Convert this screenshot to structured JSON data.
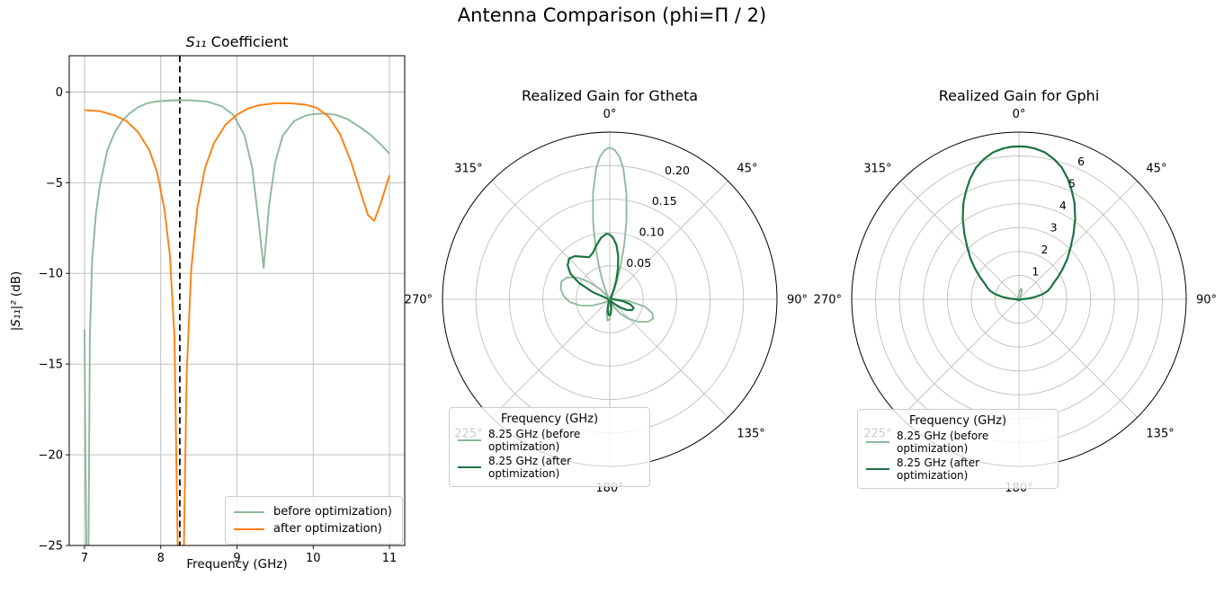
{
  "figure": {
    "suptitle": "Antenna Comparison (phi=Π / 2)",
    "colors": {
      "before": "#8fbc8f",
      "before_line": "#8db79a",
      "after_polar": "#1b7340",
      "after_s11": "#ff7f0e",
      "marker": "#000000",
      "grid": "#b8b8b8",
      "spine": "#000000"
    }
  },
  "chart_data": [
    {
      "id": "s11",
      "type": "line",
      "title_math": "S₁₁",
      "title_rest": " Coefficient",
      "xlabel": "Frequency (GHz)",
      "ylabel_math": "|S₁₁|²",
      "ylabel_rest": " (dB)",
      "xlim": [
        6.8,
        11.2
      ],
      "ylim": [
        -25,
        2.0
      ],
      "xticks": [
        7,
        8,
        9,
        10,
        11
      ],
      "xtick_labels": [
        "7",
        "8",
        "9",
        "10",
        "11"
      ],
      "yticks": [
        0,
        -5,
        -10,
        -15,
        -20,
        -25
      ],
      "ytick_labels": [
        "0",
        "−5",
        "−10",
        "−15",
        "−20",
        "−25"
      ],
      "grid": true,
      "vline": {
        "x": 8.25,
        "color": "#000000",
        "style": "dashed"
      },
      "legend_location": "lower right",
      "series": [
        {
          "name": "before optimization)",
          "color": "#8db79a",
          "x": [
            7.0,
            7.01,
            7.03,
            7.05,
            7.07,
            7.1,
            7.15,
            7.2,
            7.3,
            7.4,
            7.5,
            7.6,
            7.7,
            7.8,
            7.9,
            8.0,
            8.2,
            8.4,
            8.6,
            8.8,
            8.95,
            9.1,
            9.2,
            9.28,
            9.35,
            9.42,
            9.5,
            9.6,
            9.75,
            9.9,
            10.0,
            10.15,
            10.3,
            10.45,
            10.6,
            10.75,
            10.9,
            11.0
          ],
          "y": [
            -13.1,
            -19.0,
            -27.0,
            -27.0,
            -13.5,
            -9.3,
            -6.7,
            -5.2,
            -3.2,
            -2.2,
            -1.55,
            -1.15,
            -0.85,
            -0.65,
            -0.55,
            -0.5,
            -0.45,
            -0.46,
            -0.52,
            -0.78,
            -1.25,
            -2.4,
            -4.2,
            -7.0,
            -9.7,
            -6.3,
            -3.9,
            -2.4,
            -1.6,
            -1.3,
            -1.22,
            -1.18,
            -1.26,
            -1.5,
            -1.9,
            -2.35,
            -2.95,
            -3.4
          ]
        },
        {
          "name": "after optimization)",
          "color": "#ff7f0e",
          "x": [
            7.0,
            7.2,
            7.4,
            7.55,
            7.7,
            7.85,
            7.95,
            8.05,
            8.12,
            8.18,
            8.23,
            8.26,
            8.3,
            8.34,
            8.4,
            8.48,
            8.58,
            8.7,
            8.85,
            9.0,
            9.15,
            9.3,
            9.5,
            9.7,
            9.9,
            10.05,
            10.2,
            10.35,
            10.5,
            10.62,
            10.72,
            10.8,
            10.88,
            11.0
          ],
          "y": [
            -1.0,
            -1.05,
            -1.3,
            -1.6,
            -2.2,
            -3.2,
            -4.4,
            -6.5,
            -9.0,
            -13.5,
            -27.0,
            -29.0,
            -26.0,
            -15.5,
            -9.8,
            -6.4,
            -4.2,
            -2.8,
            -1.8,
            -1.25,
            -0.9,
            -0.72,
            -0.62,
            -0.62,
            -0.7,
            -0.88,
            -1.35,
            -2.3,
            -3.9,
            -5.5,
            -6.8,
            -7.1,
            -6.2,
            -4.6
          ]
        }
      ]
    },
    {
      "id": "gtheta",
      "type": "polar",
      "title": "Realized Gain for Gtheta",
      "rmax": 0.25,
      "rticks": [
        0.05,
        0.1,
        0.15,
        0.2
      ],
      "rtick_labels": [
        "0.05",
        "0.10",
        "0.15",
        "0.20"
      ],
      "theta_labels": [
        "0°",
        "45°",
        "90°",
        "135°",
        "180°",
        "225°",
        "270°",
        "315°"
      ],
      "legend": {
        "title": "Frequency (GHz)",
        "entries": [
          {
            "label": "8.25 GHz (before optimization)",
            "color": "#8db79a"
          },
          {
            "label": "8.25 GHz (after optimization)",
            "color": "#1b7340"
          }
        ]
      },
      "series": [
        {
          "name": "8.25 GHz (before optimization)",
          "color": "#8db79a",
          "width": 1.8,
          "theta_deg": [
            0,
            2,
            4,
            6,
            9,
            12,
            15,
            18,
            21,
            25,
            30,
            35,
            50,
            70,
            90,
            96,
            102,
            108,
            114,
            120,
            128,
            136,
            144,
            152,
            160,
            168,
            174,
            180,
            186,
            192,
            198,
            204,
            215,
            230,
            242,
            250,
            258,
            266,
            274,
            282,
            290,
            297,
            304,
            310,
            316,
            320,
            326,
            330,
            335,
            339,
            342,
            345,
            348,
            351,
            354,
            356,
            358,
            360
          ],
          "r": [
            0.227,
            0.223,
            0.213,
            0.196,
            0.16,
            0.12,
            0.083,
            0.053,
            0.032,
            0.016,
            0.007,
            0.003,
            0.002,
            0.002,
            0.01,
            0.03,
            0.054,
            0.067,
            0.071,
            0.067,
            0.055,
            0.041,
            0.026,
            0.012,
            0.005,
            0.004,
            0.016,
            0.03,
            0.032,
            0.022,
            0.009,
            0.003,
            0.002,
            0.004,
            0.012,
            0.028,
            0.045,
            0.06,
            0.069,
            0.075,
            0.077,
            0.072,
            0.058,
            0.04,
            0.022,
            0.008,
            0.003,
            0.007,
            0.016,
            0.032,
            0.053,
            0.083,
            0.12,
            0.16,
            0.196,
            0.213,
            0.223,
            0.227
          ]
        },
        {
          "name": "8.25 GHz (after optimization)",
          "color": "#1b7340",
          "width": 2.2,
          "theta_deg": [
            0,
            3,
            7,
            11,
            15,
            19,
            23,
            27,
            32,
            45,
            70,
            92,
            98,
            104,
            110,
            116,
            122,
            128,
            136,
            144,
            155,
            163,
            170,
            177,
            184,
            191,
            198,
            205,
            220,
            250,
            270,
            288,
            293,
            298,
            303,
            309,
            315,
            321,
            327,
            334,
            340,
            346,
            352,
            357,
            360
          ],
          "r": [
            0.097,
            0.092,
            0.082,
            0.066,
            0.048,
            0.03,
            0.015,
            0.006,
            0.002,
            0.002,
            0.003,
            0.006,
            0.02,
            0.032,
            0.038,
            0.037,
            0.03,
            0.02,
            0.009,
            0.003,
            0.002,
            0.005,
            0.014,
            0.023,
            0.024,
            0.016,
            0.007,
            0.003,
            0.002,
            0.002,
            0.003,
            0.004,
            0.028,
            0.052,
            0.07,
            0.081,
            0.086,
            0.083,
            0.076,
            0.07,
            0.074,
            0.083,
            0.093,
            0.098,
            0.097
          ]
        }
      ]
    },
    {
      "id": "gphi",
      "type": "polar",
      "title": "Realized Gain for Gphi",
      "rmax": 7,
      "rticks": [
        1,
        2,
        3,
        4,
        5,
        6
      ],
      "rtick_labels": [
        "1",
        "2",
        "3",
        "4",
        "5",
        "6"
      ],
      "theta_labels": [
        "0°",
        "45°",
        "90°",
        "135°",
        "180°",
        "225°",
        "270°",
        "315°"
      ],
      "legend": {
        "title": "Frequency (GHz)",
        "entries": [
          {
            "label": "8.25 GHz (before optimization)",
            "color": "#8db79a"
          },
          {
            "label": "8.25 GHz (after optimization)",
            "color": "#1b7340"
          }
        ]
      },
      "series": [
        {
          "name": "8.25 GHz (before optimization)",
          "color": "#8db79a",
          "width": 1.8,
          "theta_deg": [
            0,
            4,
            8,
            12,
            16,
            20,
            24,
            28,
            34,
            45,
            90,
            135,
            180,
            225,
            270,
            315,
            340,
            350,
            355,
            360
          ],
          "r": [
            0.22,
            0.3,
            0.4,
            0.45,
            0.42,
            0.34,
            0.24,
            0.14,
            0.06,
            0.03,
            0.03,
            0.04,
            0.04,
            0.03,
            0.03,
            0.03,
            0.05,
            0.1,
            0.16,
            0.22
          ]
        },
        {
          "name": "8.25 GHz (after optimization)",
          "color": "#1b7340",
          "width": 2.2,
          "theta_deg": [
            0,
            3,
            6,
            10,
            14,
            18,
            22,
            26,
            30,
            35,
            40,
            45,
            50,
            55,
            60,
            65,
            70,
            74,
            78,
            82,
            86,
            90,
            100,
            120,
            150,
            180,
            210,
            240,
            260,
            270,
            274,
            278,
            282,
            286,
            290,
            295,
            300,
            305,
            310,
            315,
            320,
            325,
            330,
            334,
            338,
            342,
            346,
            350,
            354,
            357,
            360
          ],
          "r": [
            6.4,
            6.39,
            6.35,
            6.25,
            6.05,
            5.8,
            5.45,
            5.05,
            4.65,
            4.1,
            3.55,
            3.05,
            2.65,
            2.25,
            1.9,
            1.6,
            1.4,
            1.25,
            1.0,
            0.7,
            0.35,
            0.1,
            0.05,
            0.04,
            0.04,
            0.05,
            0.04,
            0.04,
            0.05,
            0.1,
            0.35,
            0.7,
            1.0,
            1.25,
            1.4,
            1.6,
            1.9,
            2.25,
            2.65,
            3.05,
            3.55,
            4.1,
            4.65,
            5.05,
            5.45,
            5.8,
            6.05,
            6.25,
            6.35,
            6.39,
            6.4
          ]
        }
      ]
    }
  ]
}
